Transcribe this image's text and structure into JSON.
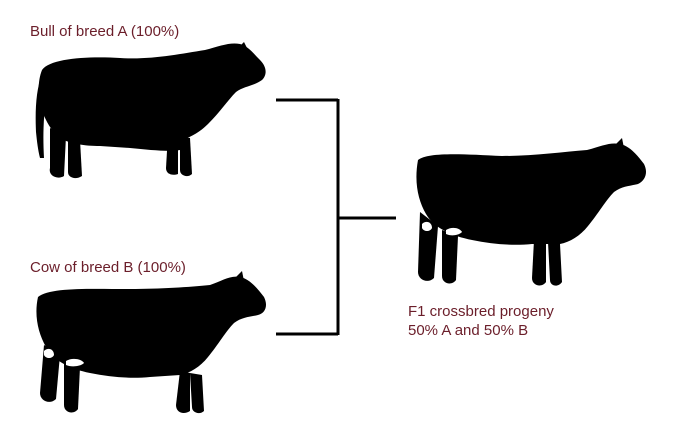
{
  "colors": {
    "label_text": "#6b1e2a",
    "silhouette": "#000000",
    "white_patch": "#ffffff",
    "connector": "#000000"
  },
  "parents": {
    "bull": {
      "label": "Bull of breed A (100%)",
      "icon": "bull-silhouette-icon"
    },
    "cow": {
      "label": "Cow of breed B (100%)",
      "icon": "cow-silhouette-icon"
    }
  },
  "offspring": {
    "icon": "crossbred-calf-silhouette-icon",
    "label_line1": "F1 crossbred progeny",
    "label_line2": "50% A and 50% B"
  }
}
